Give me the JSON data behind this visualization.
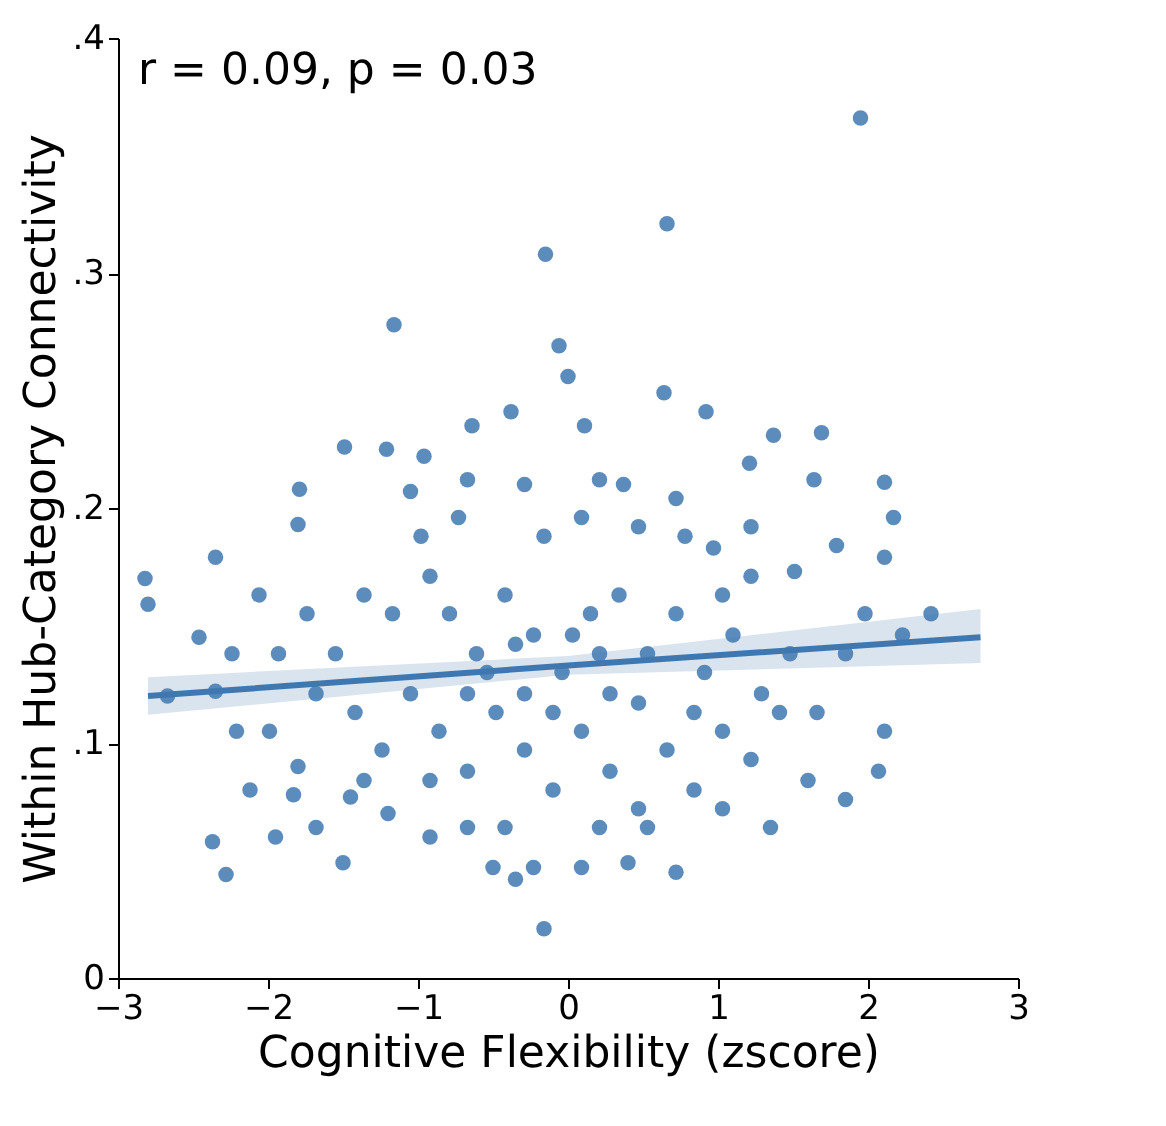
{
  "chart_data": {
    "type": "scatter",
    "xlabel": "Cognitive Flexibility (zscore)",
    "ylabel": "Within Hub-Category Connectivity",
    "annotations": [
      "r = 0.09, p = 0.03"
    ],
    "xlim": [
      -3,
      3
    ],
    "xticks": [
      -3,
      -2,
      -1,
      0,
      1,
      2,
      3
    ],
    "ylim": [
      0,
      0.4
    ],
    "yticks": [
      {
        "value": 0,
        "label": "0"
      },
      {
        "value": 0.1,
        "label": ".1"
      },
      {
        "value": 0.2,
        "label": ".2"
      },
      {
        "value": 0.3,
        "label": ".3"
      },
      {
        "value": 0.4,
        "label": ".4"
      }
    ],
    "grid": false,
    "line_style": "solid",
    "series": [
      {
        "marker": "circle",
        "color": "#4a7fb5",
        "x": [
          1.95,
          0.66,
          -0.15,
          -0.06,
          0,
          0.11,
          0.64,
          -1.16,
          0.92,
          1.37,
          -0.38,
          -0.64,
          1.21,
          1.69,
          2.11,
          1.64,
          -1.49,
          -1.21,
          -1.79,
          -2.82,
          -2.8,
          -2.35,
          -2.46,
          -2.67,
          -2.24,
          -2.35,
          -2.21,
          -2.37,
          -2.28,
          -1.95,
          -1.83,
          -1.8,
          -1.5,
          -1.45,
          -1.8,
          -1.05,
          -0.96,
          -0.67,
          -0.29,
          0.21,
          0.37,
          0.72,
          0.97,
          1.22,
          1.51,
          1.79,
          2.11,
          2.17,
          1.98,
          2.23,
          2.42,
          2.11,
          2.07,
          1.85,
          1.6,
          1.35,
          1.03,
          0.72,
          0.4,
          0.09,
          -0.16,
          -0.35,
          -0.5,
          -0.67,
          -0.92,
          -1.2,
          -1.36,
          -1.55,
          -1.36,
          -1.17,
          -0.92,
          -0.79,
          -0.61,
          -0.42,
          -0.23,
          -0.04,
          0.15,
          0.34,
          0.53,
          0.72,
          0.91,
          1.1,
          1.29,
          1.48,
          1.66,
          1.85,
          -1.42,
          -1.24,
          -1.05,
          -0.86,
          -0.67,
          -0.48,
          -0.29,
          -0.1,
          0.09,
          0.28,
          0.47,
          0.66,
          0.84,
          1.03,
          1.22,
          1.41,
          -1.68,
          -1.74,
          -1.93,
          -2.06,
          -0.98,
          -0.73,
          -0.16,
          0.09,
          0.47,
          0.78,
          -0.42,
          0.21,
          0.53,
          -0.23,
          -0.92,
          -0.54,
          -0.29,
          -0.1,
          0.28,
          0.47,
          0.21,
          0.03,
          -0.35,
          -0.67,
          0.84,
          1.03,
          1.22,
          -2.12,
          -1.99,
          -1.68
        ],
        "values": [
          0.366,
          0.321,
          0.308,
          0.269,
          0.256,
          0.235,
          0.249,
          0.278,
          0.241,
          0.231,
          0.241,
          0.235,
          0.219,
          0.232,
          0.211,
          0.212,
          0.226,
          0.225,
          0.208,
          0.17,
          0.159,
          0.179,
          0.145,
          0.12,
          0.138,
          0.122,
          0.105,
          0.058,
          0.044,
          0.06,
          0.078,
          0.193,
          0.049,
          0.077,
          0.09,
          0.207,
          0.222,
          0.212,
          0.21,
          0.212,
          0.21,
          0.204,
          0.183,
          0.171,
          0.173,
          0.184,
          0.179,
          0.196,
          0.155,
          0.146,
          0.155,
          0.105,
          0.088,
          0.076,
          0.084,
          0.064,
          0.072,
          0.045,
          0.049,
          0.047,
          0.021,
          0.042,
          0.047,
          0.064,
          0.06,
          0.07,
          0.084,
          0.138,
          0.163,
          0.155,
          0.171,
          0.155,
          0.138,
          0.163,
          0.146,
          0.13,
          0.155,
          0.163,
          0.138,
          0.155,
          0.13,
          0.146,
          0.121,
          0.138,
          0.113,
          0.138,
          0.113,
          0.097,
          0.121,
          0.105,
          0.088,
          0.113,
          0.097,
          0.08,
          0.105,
          0.088,
          0.072,
          0.097,
          0.08,
          0.105,
          0.093,
          0.113,
          0.121,
          0.155,
          0.138,
          0.163,
          0.188,
          0.196,
          0.188,
          0.196,
          0.192,
          0.188,
          0.064,
          0.064,
          0.064,
          0.047,
          0.084,
          0.13,
          0.121,
          0.113,
          0.121,
          0.117,
          0.138,
          0.146,
          0.142,
          0.121,
          0.113,
          0.163,
          0.192,
          0.08,
          0.105,
          0.064
        ]
      },
      {
        "type": "line",
        "color": "#3f78b0",
        "x": [
          -2.8,
          0,
          2.75
        ],
        "values": [
          0.12,
          0.133,
          0.145
        ],
        "lower": [
          0.112,
          0.129,
          0.134
        ],
        "upper": [
          0.128,
          0.137,
          0.157
        ]
      }
    ]
  }
}
